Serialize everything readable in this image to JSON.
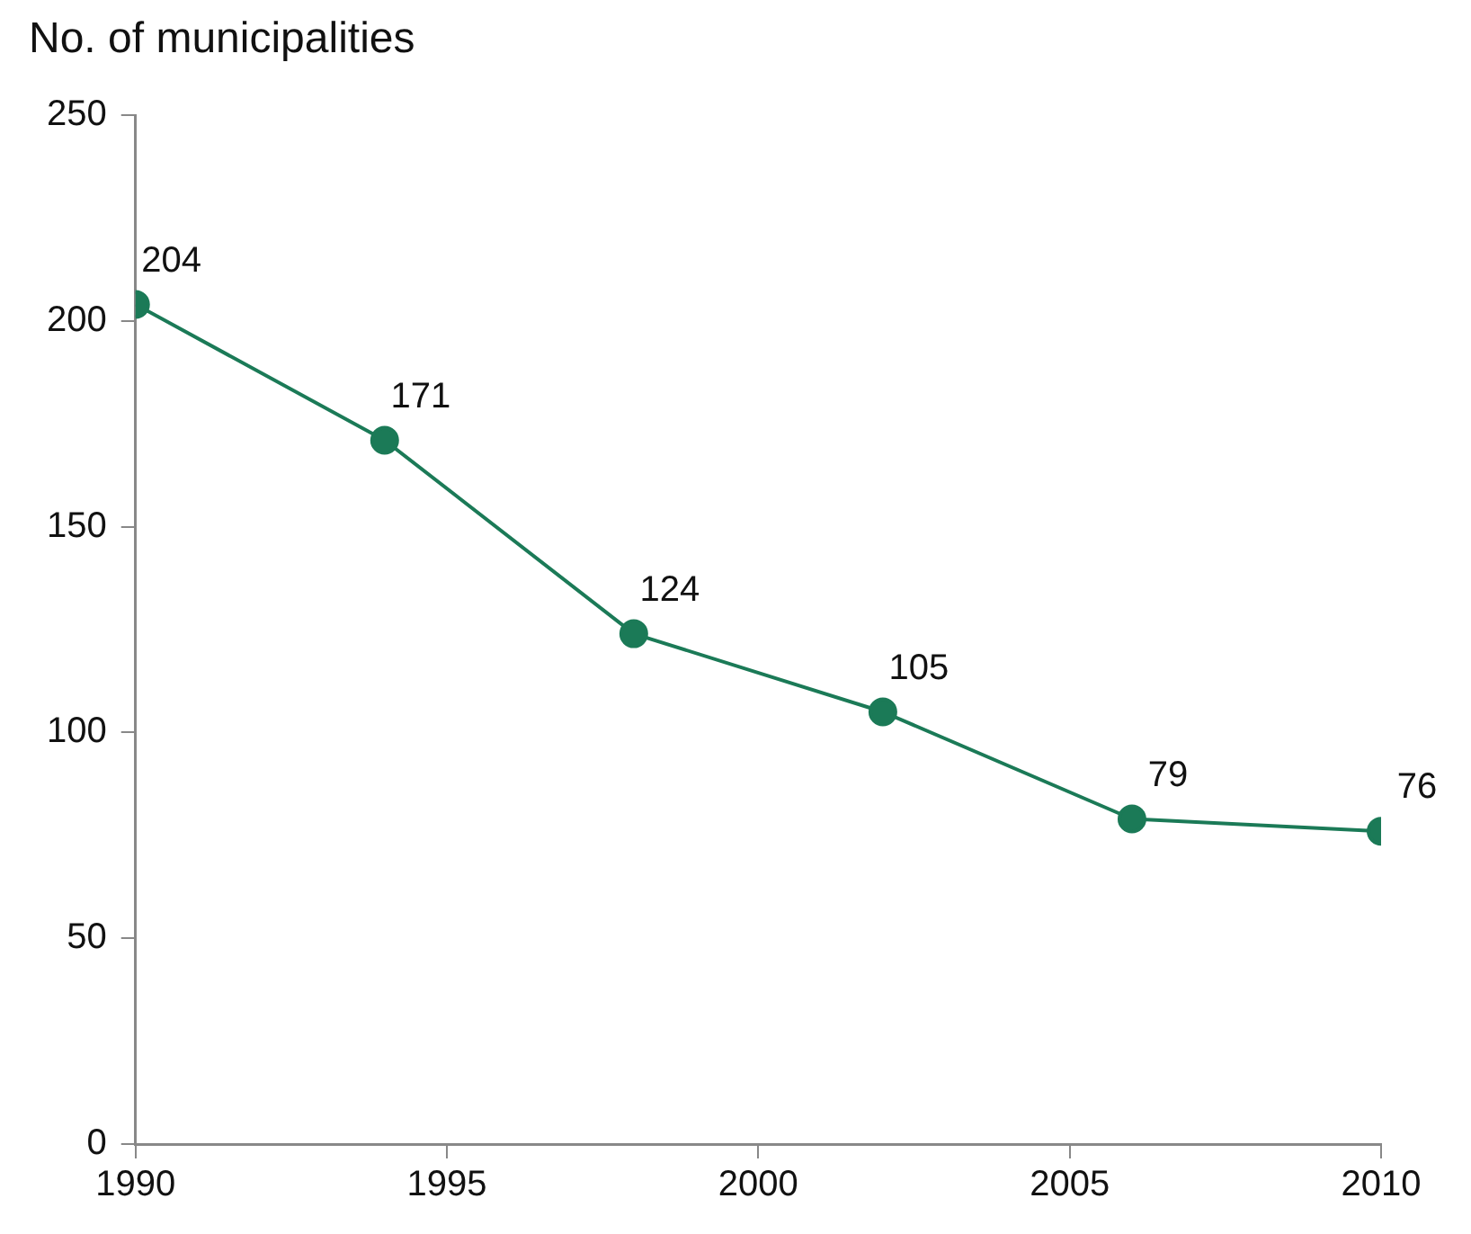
{
  "chart_data": {
    "type": "line",
    "ylabel": "No. of municipalities",
    "x": [
      1990,
      1994,
      1998,
      2002,
      2006,
      2010
    ],
    "series": [
      {
        "color": "#1b7a57",
        "values": [
          204,
          171,
          124,
          105,
          79,
          76
        ]
      }
    ],
    "xlim": [
      1990,
      2010
    ],
    "xticks": [
      1990,
      1995,
      2000,
      2005,
      2010
    ],
    "ylim": [
      0,
      250
    ],
    "yticks": [
      0,
      50,
      100,
      150,
      200,
      250
    ],
    "marker": "circle",
    "line_style": "solid",
    "data_labels": true,
    "legend": false
  }
}
